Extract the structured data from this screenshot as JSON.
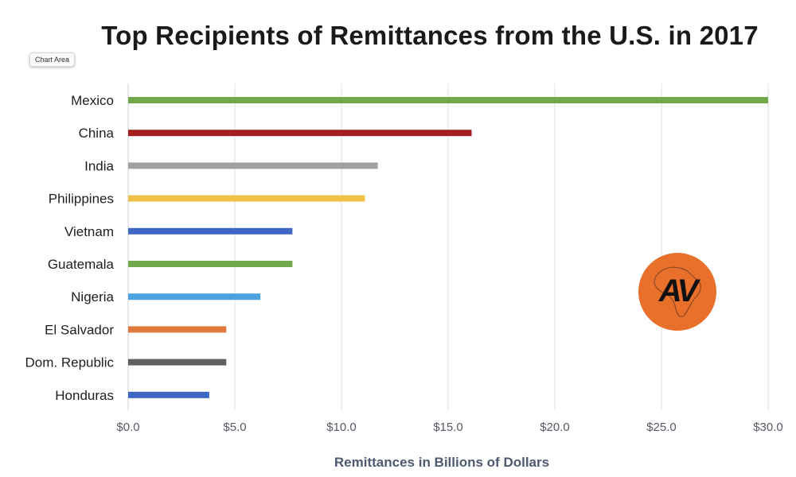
{
  "chart_data": {
    "type": "bar",
    "orientation": "horizontal",
    "title": "Top Recipients of Remittances from the U.S. in 2017",
    "xlabel": "Remittances in Billions of Dollars",
    "ylabel": "",
    "xlim": [
      0,
      30
    ],
    "x_ticks": [
      "$0.0",
      "$5.0",
      "$10.0",
      "$15.0",
      "$20.0",
      "$25.0",
      "$30.0"
    ],
    "grid": true,
    "categories": [
      "Mexico",
      "China",
      "India",
      "Philippines",
      "Vietnam",
      "Guatemala",
      "Nigeria",
      "El Salvador",
      "Dom. Republic",
      "Honduras"
    ],
    "values": [
      30.0,
      16.1,
      11.7,
      11.1,
      7.7,
      7.7,
      6.2,
      4.6,
      4.6,
      3.8
    ],
    "colors": [
      "#72a84c",
      "#a31d1d",
      "#a0a0a0",
      "#efc349",
      "#3d66c5",
      "#72a84c",
      "#4aa3e0",
      "#e07a3c",
      "#5f5f5f",
      "#3d66c5"
    ]
  },
  "ui": {
    "chart_area_label": "Chart Area"
  },
  "logo": {
    "text": "AV",
    "color": "#e8702a"
  }
}
